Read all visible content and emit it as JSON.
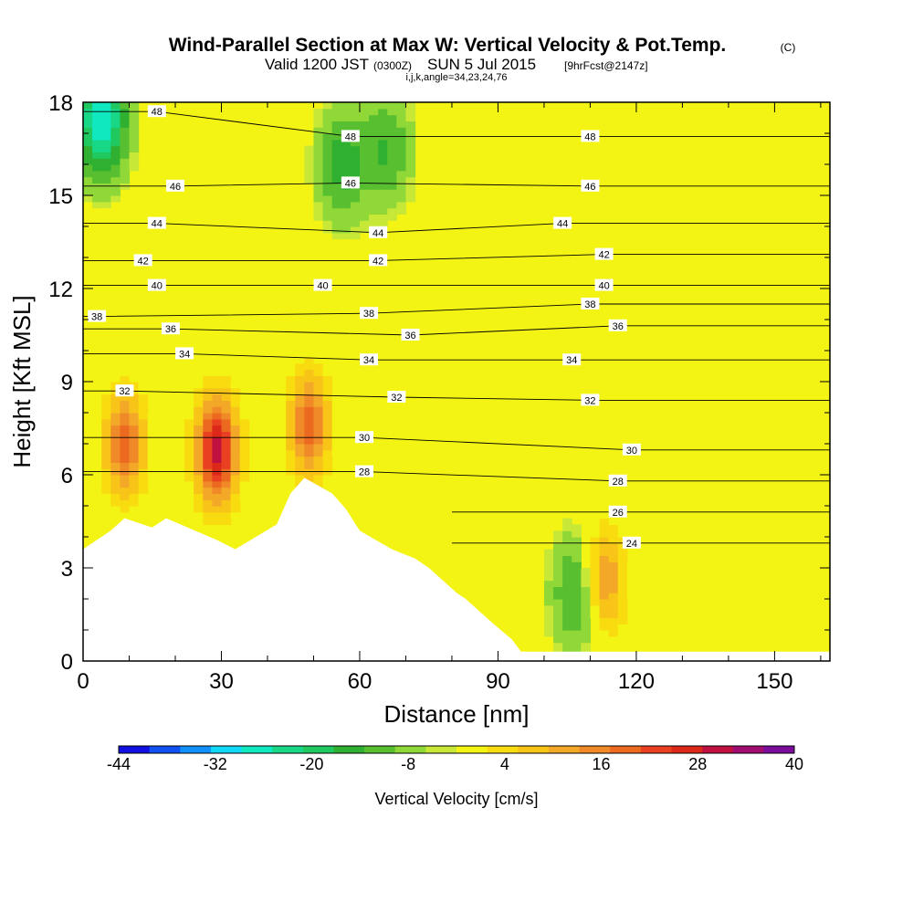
{
  "chart_data": {
    "type": "heatmap",
    "title": "Wind-Parallel Section at Max W: Vertical Velocity & Pot.Temp.",
    "title_mark": "(C)",
    "subtitle": {
      "valid": "Valid 1200 JST",
      "utc": "(0300Z)",
      "date": "SUN 5 Jul 2015",
      "forecast": "[9hrFcst@2147z]",
      "grid_info": "i,j,k,angle=34,23,24,76"
    },
    "xlabel": "Distance [nm]",
    "ylabel": "Height [Kft MSL]",
    "xlim": [
      0,
      162
    ],
    "ylim": [
      0,
      18
    ],
    "x_ticks": [
      0,
      30,
      60,
      90,
      120,
      150
    ],
    "y_ticks": [
      0,
      3,
      6,
      9,
      12,
      15,
      18
    ],
    "colorbar": {
      "label": "Vertical Velocity [cm/s]",
      "ticks": [
        -44,
        -32,
        -20,
        -8,
        4,
        16,
        28,
        40
      ],
      "min": -44,
      "max": 40,
      "step": 4,
      "colors": [
        "#1010e0",
        "#1050f0",
        "#1090f8",
        "#10d8f8",
        "#10e8c0",
        "#18d888",
        "#20c860",
        "#30b030",
        "#58c030",
        "#90d838",
        "#c8e838",
        "#f4f414",
        "#f8dc10",
        "#f8c418",
        "#f4a828",
        "#f08a28",
        "#ec6a20",
        "#e84020",
        "#dc2818",
        "#c01040",
        "#a00c70",
        "#7c0c9c"
      ]
    },
    "theta_contours": {
      "unit": "C",
      "levels": [
        24,
        26,
        28,
        30,
        32,
        34,
        36,
        38,
        40,
        42,
        44,
        46,
        48
      ],
      "label_positions": [
        {
          "value": 48,
          "x": 16,
          "y": 17.7
        },
        {
          "value": 48,
          "x": 58,
          "y": 16.9
        },
        {
          "value": 48,
          "x": 110,
          "y": 16.9
        },
        {
          "value": 46,
          "x": 20,
          "y": 15.3
        },
        {
          "value": 46,
          "x": 58,
          "y": 15.4
        },
        {
          "value": 46,
          "x": 110,
          "y": 15.3
        },
        {
          "value": 44,
          "x": 16,
          "y": 14.1
        },
        {
          "value": 44,
          "x": 64,
          "y": 13.8
        },
        {
          "value": 44,
          "x": 104,
          "y": 14.1
        },
        {
          "value": 42,
          "x": 13,
          "y": 12.9
        },
        {
          "value": 42,
          "x": 64,
          "y": 12.9
        },
        {
          "value": 42,
          "x": 113,
          "y": 13.1
        },
        {
          "value": 40,
          "x": 16,
          "y": 12.1
        },
        {
          "value": 40,
          "x": 52,
          "y": 12.1
        },
        {
          "value": 40,
          "x": 113,
          "y": 12.1
        },
        {
          "value": 38,
          "x": 3,
          "y": 11.1
        },
        {
          "value": 38,
          "x": 62,
          "y": 11.2
        },
        {
          "value": 38,
          "x": 110,
          "y": 11.5
        },
        {
          "value": 36,
          "x": 19,
          "y": 10.7
        },
        {
          "value": 36,
          "x": 71,
          "y": 10.5
        },
        {
          "value": 36,
          "x": 116,
          "y": 10.8
        },
        {
          "value": 34,
          "x": 22,
          "y": 9.9
        },
        {
          "value": 34,
          "x": 62,
          "y": 9.7
        },
        {
          "value": 34,
          "x": 106,
          "y": 9.7
        },
        {
          "value": 32,
          "x": 9,
          "y": 8.7
        },
        {
          "value": 32,
          "x": 68,
          "y": 8.5
        },
        {
          "value": 32,
          "x": 110,
          "y": 8.4
        },
        {
          "value": 30,
          "x": 61,
          "y": 7.2
        },
        {
          "value": 30,
          "x": 119,
          "y": 6.8
        },
        {
          "value": 28,
          "x": 61,
          "y": 6.1
        },
        {
          "value": 28,
          "x": 116,
          "y": 5.8
        },
        {
          "value": 26,
          "x": 116,
          "y": 4.8
        },
        {
          "value": 24,
          "x": 119,
          "y": 3.8
        }
      ]
    },
    "vertical_velocity_features": [
      {
        "x": 29,
        "y": 6.8,
        "w": 34,
        "kind": "updraft"
      },
      {
        "x": 9,
        "y": 7.0,
        "w": 22,
        "kind": "updraft"
      },
      {
        "x": 49,
        "y": 7.6,
        "w": 22,
        "kind": "updraft"
      },
      {
        "x": 113,
        "y": 2.6,
        "w": 18,
        "kind": "updraft"
      },
      {
        "x": 107,
        "y": 2.2,
        "w": -14,
        "kind": "downdraft"
      },
      {
        "x": 56,
        "y": 16.0,
        "w": -14,
        "kind": "downdraft"
      },
      {
        "x": 4,
        "y": 17.5,
        "w": -28,
        "kind": "downdraft"
      },
      {
        "x": 66,
        "y": 16.5,
        "w": -12,
        "kind": "downdraft"
      }
    ],
    "terrain_profile": [
      [
        0,
        3.6
      ],
      [
        3,
        3.9
      ],
      [
        6,
        4.2
      ],
      [
        9,
        4.6
      ],
      [
        15,
        4.3
      ],
      [
        18,
        4.6
      ],
      [
        29,
        3.9
      ],
      [
        33,
        3.6
      ],
      [
        42,
        4.4
      ],
      [
        45,
        5.4
      ],
      [
        48,
        5.9
      ],
      [
        54,
        5.4
      ],
      [
        57,
        4.9
      ],
      [
        60,
        4.2
      ],
      [
        67,
        3.6
      ],
      [
        72,
        3.3
      ],
      [
        75,
        3.0
      ],
      [
        78,
        2.6
      ],
      [
        81,
        2.2
      ],
      [
        83,
        2.0
      ],
      [
        86,
        1.6
      ],
      [
        89,
        1.2
      ],
      [
        93,
        0.7
      ],
      [
        95,
        0.3
      ],
      [
        162,
        0.3
      ]
    ]
  }
}
